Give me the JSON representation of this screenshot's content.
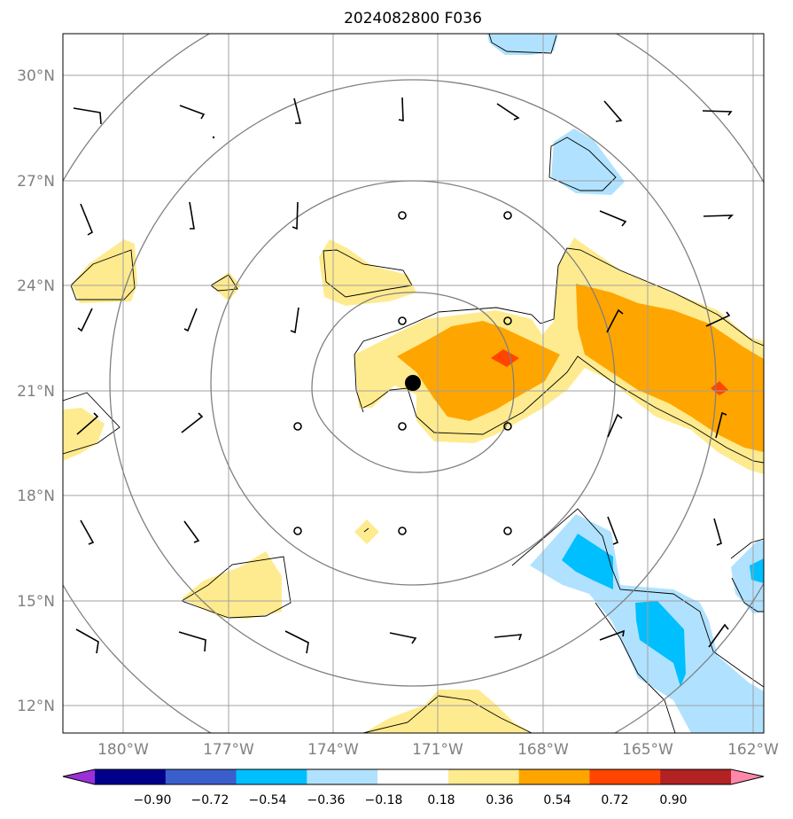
{
  "title": "2024082800 F036",
  "lat_labels": [
    "30°N",
    "27°N",
    "24°N",
    "21°N",
    "18°N",
    "15°N",
    "12°N"
  ],
  "lon_labels": [
    "180°W",
    "177°W",
    "174°W",
    "171°W",
    "168°W",
    "165°W",
    "162°W"
  ],
  "colorbar": {
    "tick_labels": [
      "−0.90",
      "−0.72",
      "−0.54",
      "−0.36",
      "−0.18",
      "0.18",
      "0.36",
      "0.54",
      "0.72",
      "0.90"
    ],
    "colors": [
      "#9b30d8",
      "#00008b",
      "#3a5fcd",
      "#00bfff",
      "#b0e2ff",
      "#ffffff",
      "#ffeb8f",
      "#ffa500",
      "#ff4500",
      "#b22222",
      "#ff88aa"
    ]
  },
  "field_colors": {
    "light_blue": "#b0e2ff",
    "blue": "#00bfff",
    "light_yellow": "#ffeb8f",
    "orange": "#ffa500",
    "red_orange": "#ff4500"
  },
  "storm_center_marker": "filled-black-circle",
  "grid_color": "#a0a0a0",
  "contour_color": "#808080"
}
